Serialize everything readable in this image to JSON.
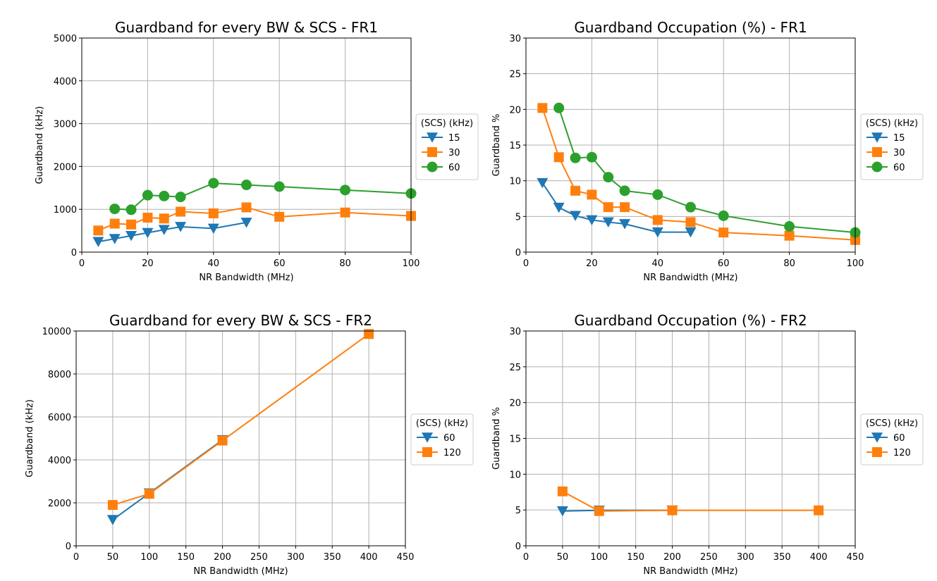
{
  "chart_data": [
    {
      "type": "line",
      "title": "Guardband for every BW & SCS - FR1",
      "xlabel": "NR Bandwidth (MHz)",
      "ylabel": "Guardband (kHz)",
      "xlim": [
        0,
        100
      ],
      "ylim": [
        0,
        5000
      ],
      "xticks": [
        0,
        20,
        40,
        60,
        80,
        100
      ],
      "yticks": [
        0,
        1000,
        2000,
        3000,
        4000,
        5000
      ],
      "grid": true,
      "legend": {
        "title": "(SCS) (kHz)",
        "placement": "outside-right"
      },
      "series": [
        {
          "name": "15",
          "color": "#1f77b4",
          "marker": "triangle-down",
          "x": [
            5,
            10,
            15,
            20,
            25,
            30,
            40,
            50
          ],
          "y": [
            242.5,
            312.5,
            382.5,
            452.5,
            522.5,
            592.5,
            552.5,
            692.5
          ]
        },
        {
          "name": "30",
          "color": "#ff7f0e",
          "marker": "square",
          "x": [
            5,
            10,
            15,
            20,
            25,
            30,
            40,
            50,
            60,
            80,
            100
          ],
          "y": [
            505,
            665,
            645,
            805,
            785,
            945,
            905,
            1045,
            825,
            925,
            845
          ]
        },
        {
          "name": "60",
          "color": "#2ca02c",
          "marker": "circle",
          "x": [
            10,
            15,
            20,
            25,
            30,
            40,
            50,
            60,
            80,
            100
          ],
          "y": [
            1010,
            990,
            1330,
            1310,
            1290,
            1610,
            1570,
            1530,
            1450,
            1370
          ]
        }
      ]
    },
    {
      "type": "line",
      "title": "Guardband Occupation (%) - FR1",
      "xlabel": "NR Bandwidth (MHz)",
      "ylabel": "Guardband %",
      "xlim": [
        0,
        100
      ],
      "ylim": [
        0,
        30
      ],
      "xticks": [
        0,
        20,
        40,
        60,
        80,
        100
      ],
      "yticks": [
        0,
        5,
        10,
        15,
        20,
        25,
        30
      ],
      "grid": true,
      "legend": {
        "title": "(SCS) (kHz)",
        "placement": "outside-right"
      },
      "series": [
        {
          "name": "15",
          "color": "#1f77b4",
          "marker": "triangle-down",
          "x": [
            5,
            10,
            15,
            20,
            25,
            30,
            40,
            50
          ],
          "y": [
            9.7,
            6.25,
            5.1,
            4.5,
            4.2,
            3.95,
            2.8,
            2.8
          ]
        },
        {
          "name": "30",
          "color": "#ff7f0e",
          "marker": "square",
          "x": [
            5,
            10,
            15,
            20,
            25,
            30,
            40,
            50,
            60,
            80,
            100
          ],
          "y": [
            20.2,
            13.3,
            8.6,
            8.05,
            6.3,
            6.3,
            4.5,
            4.2,
            2.75,
            2.3,
            1.7
          ]
        },
        {
          "name": "60",
          "color": "#2ca02c",
          "marker": "circle",
          "x": [
            10,
            15,
            20,
            25,
            30,
            40,
            50,
            60,
            80,
            100
          ],
          "y": [
            20.2,
            13.2,
            13.3,
            10.5,
            8.6,
            8.05,
            6.3,
            5.1,
            3.6,
            2.75
          ]
        }
      ]
    },
    {
      "type": "line",
      "title": "Guardband for every BW & SCS - FR2",
      "xlabel": "NR Bandwidth (MHz)",
      "ylabel": "Guardband (kHz)",
      "xlim": [
        0,
        450
      ],
      "ylim": [
        0,
        10000
      ],
      "xticks": [
        0,
        50,
        100,
        150,
        200,
        250,
        300,
        350,
        400,
        450
      ],
      "yticks": [
        0,
        2000,
        4000,
        6000,
        8000,
        10000
      ],
      "grid": true,
      "legend": {
        "title": "(SCS) (kHz)",
        "placement": "outside-right"
      },
      "series": [
        {
          "name": "60",
          "color": "#1f77b4",
          "marker": "triangle-down",
          "x": [
            50,
            100,
            200
          ],
          "y": [
            1210,
            2450,
            4930
          ]
        },
        {
          "name": "120",
          "color": "#ff7f0e",
          "marker": "square",
          "x": [
            50,
            100,
            200,
            400
          ],
          "y": [
            1900,
            2420,
            4900,
            9860
          ]
        }
      ]
    },
    {
      "type": "line",
      "title": "Guardband Occupation (%) - FR2",
      "xlabel": "NR Bandwidth (MHz)",
      "ylabel": "Guardband %",
      "xlim": [
        0,
        450
      ],
      "ylim": [
        0,
        30
      ],
      "xticks": [
        0,
        50,
        100,
        150,
        200,
        250,
        300,
        350,
        400,
        450
      ],
      "yticks": [
        0,
        5,
        10,
        15,
        20,
        25,
        30
      ],
      "grid": true,
      "legend": {
        "title": "(SCS) (kHz)",
        "placement": "outside-right"
      },
      "series": [
        {
          "name": "60",
          "color": "#1f77b4",
          "marker": "triangle-down",
          "x": [
            50,
            100,
            200
          ],
          "y": [
            4.85,
            4.95,
            4.95
          ]
        },
        {
          "name": "120",
          "color": "#ff7f0e",
          "marker": "square",
          "x": [
            50,
            100,
            200,
            400
          ],
          "y": [
            7.6,
            4.85,
            4.95,
            4.95
          ]
        }
      ]
    }
  ]
}
